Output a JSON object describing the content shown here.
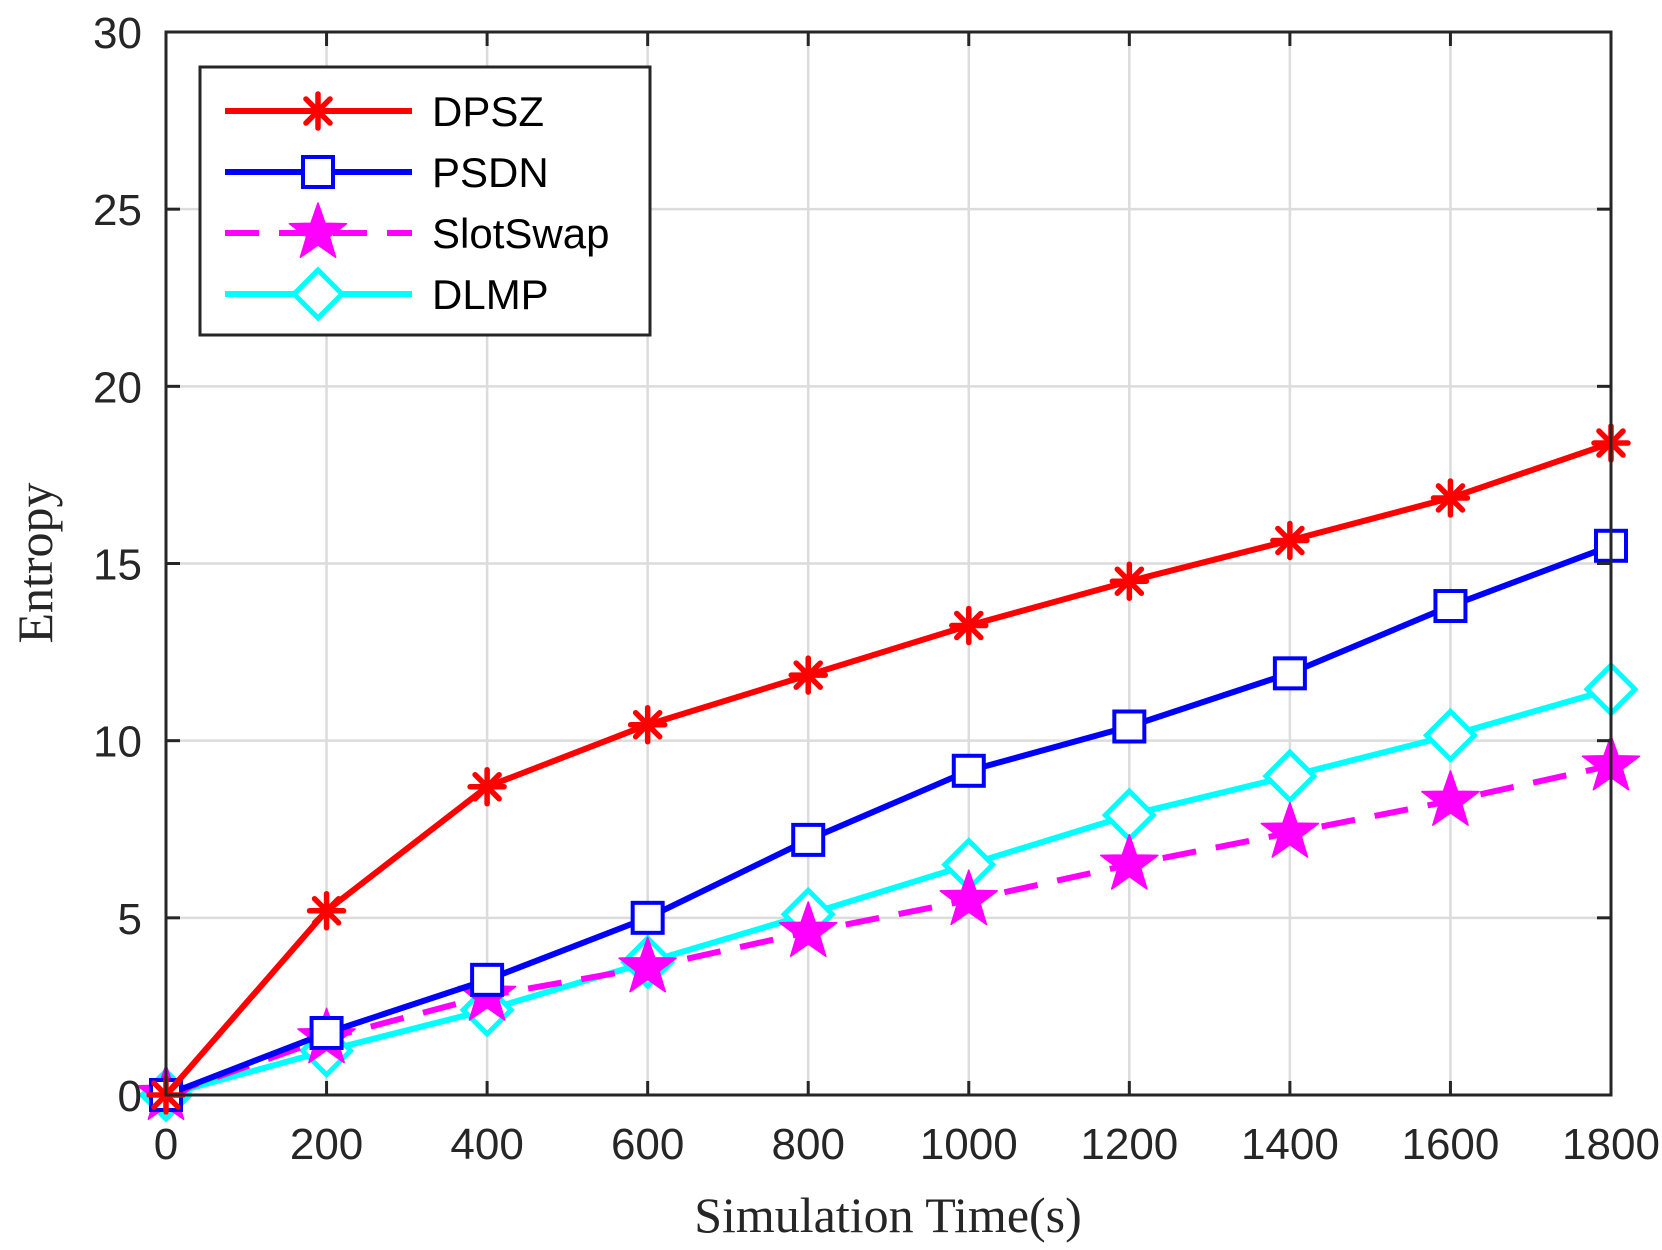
{
  "chart_data": {
    "type": "line",
    "title": "",
    "xlabel": "Simulation Time(s)",
    "ylabel": "Entropy",
    "xlim": [
      0,
      1800
    ],
    "ylim": [
      0,
      30
    ],
    "xticks": [
      0,
      200,
      400,
      600,
      800,
      1000,
      1200,
      1400,
      1600,
      1800
    ],
    "yticks": [
      0,
      5,
      10,
      15,
      20,
      25,
      30
    ],
    "grid": true,
    "legend_position": "top-left",
    "x": [
      0,
      200,
      400,
      600,
      800,
      1000,
      1200,
      1400,
      1600,
      1800
    ],
    "series": [
      {
        "name": "DPSZ",
        "color": "#ff0000",
        "marker": "asterisk",
        "dashed": false,
        "values": [
          0,
          5.2,
          8.7,
          10.45,
          11.85,
          13.25,
          14.5,
          15.65,
          16.85,
          18.4
        ]
      },
      {
        "name": "PSDN",
        "color": "#0000ff",
        "marker": "square",
        "dashed": false,
        "values": [
          0,
          1.75,
          3.25,
          5.0,
          7.2,
          9.15,
          10.4,
          11.9,
          13.8,
          15.5
        ]
      },
      {
        "name": "SlotSwap",
        "color": "#ff00ff",
        "marker": "star",
        "dashed": true,
        "values": [
          0,
          1.6,
          2.8,
          3.6,
          4.6,
          5.5,
          6.5,
          7.4,
          8.3,
          9.3
        ]
      },
      {
        "name": "DLMP",
        "color": "#00ffff",
        "marker": "diamond",
        "dashed": false,
        "values": [
          0,
          1.25,
          2.4,
          3.75,
          5.1,
          6.5,
          7.9,
          9.0,
          10.15,
          11.45
        ]
      }
    ]
  }
}
